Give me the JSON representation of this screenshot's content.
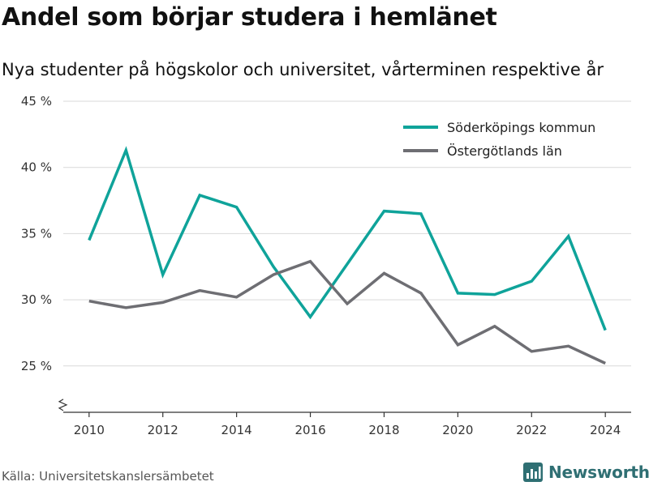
{
  "title": "Andel som börjar studera i hemlänet",
  "subtitle": "Nya studenter på högskolor och universitet, vårterminen respektive år",
  "source": "Källa: Universitetskanslersämbetet",
  "brand": "Newsworthy",
  "colors": {
    "series1": "#0fa39a",
    "series2": "#6e6e73",
    "grid": "#d9d9d9",
    "brand": "#2f6f73"
  },
  "chart_data": {
    "type": "line",
    "x": [
      2010,
      2011,
      2012,
      2013,
      2014,
      2015,
      2016,
      2017,
      2018,
      2019,
      2020,
      2021,
      2022,
      2023,
      2024
    ],
    "series": [
      {
        "name": "Söderköpings kommun",
        "color": "#0fa39a",
        "values": [
          34.5,
          41.3,
          31.9,
          37.9,
          37.0,
          32.5,
          28.7,
          32.7,
          36.7,
          36.5,
          30.5,
          30.4,
          31.4,
          34.8,
          27.7
        ]
      },
      {
        "name": "Östergötlands län",
        "color": "#6e6e73",
        "values": [
          29.9,
          29.4,
          29.8,
          30.7,
          30.2,
          31.9,
          32.9,
          29.7,
          32.0,
          30.5,
          26.6,
          28.0,
          26.1,
          26.5,
          25.2
        ]
      }
    ],
    "yticks": [
      25,
      30,
      35,
      40,
      45
    ],
    "ytick_labels": [
      "25 %",
      "30 %",
      "35 %",
      "40 %",
      "45 %"
    ],
    "xticks": [
      2010,
      2012,
      2014,
      2016,
      2018,
      2020,
      2022,
      2024
    ],
    "ylim": [
      21.5,
      45
    ],
    "xlim": [
      2009.3,
      2024.7
    ],
    "grid": true,
    "axis_break": true,
    "legend": "top-right"
  }
}
